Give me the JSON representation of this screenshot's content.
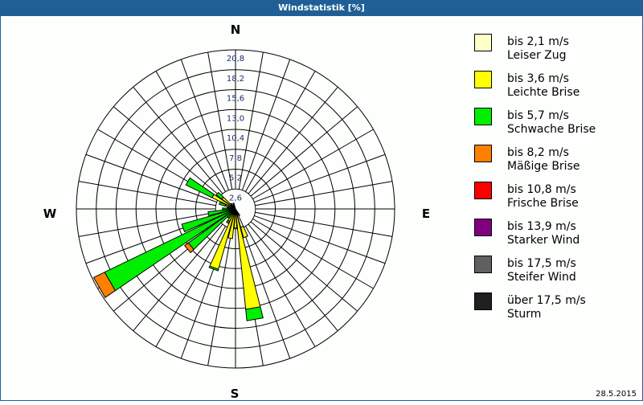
{
  "window": {
    "title": "Windstatistik [%]",
    "date": "28.5.2015"
  },
  "compass": {
    "N": "N",
    "E": "E",
    "S": "S",
    "W": "W"
  },
  "rings": [
    "2,6",
    "5,2",
    "7,8",
    "10,4",
    "13,0",
    "15,6",
    "18,2",
    "20,8"
  ],
  "legend": [
    {
      "range": "bis 2,1 m/s",
      "name": "Leiser Zug",
      "color": "#ffffc8"
    },
    {
      "range": "bis 3,6 m/s",
      "name": "Leichte Brise",
      "color": "#ffff00"
    },
    {
      "range": "bis 5,7 m/s",
      "name": "Schwache Brise",
      "color": "#00ee00"
    },
    {
      "range": "bis 8,2 m/s",
      "name": "Mäßige Brise",
      "color": "#ff8000"
    },
    {
      "range": "bis 10,8 m/s",
      "name": "Frische Brise",
      "color": "#ff0000"
    },
    {
      "range": "bis 13,9 m/s",
      "name": "Starker Wind",
      "color": "#800080"
    },
    {
      "range": "bis 17,5 m/s",
      "name": "Steifer Wind",
      "color": "#606060"
    },
    {
      "range": "über 17,5 m/s",
      "name": "Sturm",
      "color": "#202020"
    }
  ],
  "chart_data": {
    "type": "wind-rose",
    "title": "Windstatistik [%]",
    "unit": "%",
    "rmax": 20.8,
    "ring_ticks": [
      2.6,
      5.2,
      7.8,
      10.4,
      13.0,
      15.6,
      18.2,
      20.8
    ],
    "sectors_deg_step": 10,
    "series_names": [
      "bis 2,1 m/s",
      "bis 3,6 m/s",
      "bis 5,7 m/s",
      "bis 8,2 m/s",
      "bis 10,8 m/s",
      "bis 13,9 m/s",
      "bis 17,5 m/s",
      "über 17,5 m/s"
    ],
    "bars": [
      {
        "dir": 150,
        "values": [
          0.4,
          0.6,
          0,
          0,
          0,
          0,
          0,
          0
        ]
      },
      {
        "dir": 160,
        "values": [
          2.5,
          1.4,
          0,
          0,
          0,
          0,
          0,
          0
        ]
      },
      {
        "dir": 170,
        "values": [
          0.5,
          12.7,
          1.5,
          0,
          0,
          0,
          0,
          0
        ]
      },
      {
        "dir": 180,
        "values": [
          0.5,
          2.0,
          0,
          0,
          0,
          0,
          0,
          0
        ]
      },
      {
        "dir": 190,
        "values": [
          0.5,
          3.4,
          0,
          0,
          0,
          0,
          0,
          0
        ]
      },
      {
        "dir": 200,
        "values": [
          0.5,
          7.7,
          0.2,
          0,
          0,
          0,
          0,
          0
        ]
      },
      {
        "dir": 210,
        "values": [
          0.3,
          1.5,
          0.3,
          0,
          0,
          0,
          0,
          0
        ]
      },
      {
        "dir": 220,
        "values": [
          0.2,
          0.5,
          0.8,
          0,
          0,
          0,
          0,
          0
        ]
      },
      {
        "dir": 230,
        "values": [
          0.2,
          0.5,
          6.9,
          0.6,
          0,
          0,
          0,
          0
        ]
      },
      {
        "dir": 240,
        "values": [
          0.2,
          0.6,
          18.2,
          1.6,
          0,
          0,
          0,
          0
        ]
      },
      {
        "dir": 250,
        "values": [
          0.2,
          0.3,
          6.8,
          0,
          0,
          0,
          0,
          0
        ]
      },
      {
        "dir": 260,
        "values": [
          0.2,
          0.3,
          3.1,
          0,
          0,
          0,
          0,
          0
        ]
      },
      {
        "dir": 270,
        "values": [
          0.2,
          0.3,
          1.2,
          0,
          0,
          0,
          0,
          0
        ]
      },
      {
        "dir": 280,
        "values": [
          0.1,
          0.2,
          0.8,
          0,
          0,
          0,
          0,
          0
        ]
      },
      {
        "dir": 290,
        "values": [
          0.2,
          1.2,
          0.8,
          0,
          0,
          0,
          0,
          0
        ]
      },
      {
        "dir": 300,
        "values": [
          0.2,
          3.2,
          3.8,
          0,
          0,
          0,
          0,
          0
        ]
      },
      {
        "dir": 310,
        "values": [
          0.2,
          2.0,
          0.9,
          0,
          0,
          0,
          0,
          0
        ]
      },
      {
        "dir": 320,
        "values": [
          0.1,
          0.4,
          0.4,
          0,
          0,
          0,
          0,
          0
        ]
      },
      {
        "dir": 340,
        "values": [
          0.1,
          0.2,
          0.5,
          0,
          0,
          0,
          0,
          0
        ]
      }
    ]
  }
}
